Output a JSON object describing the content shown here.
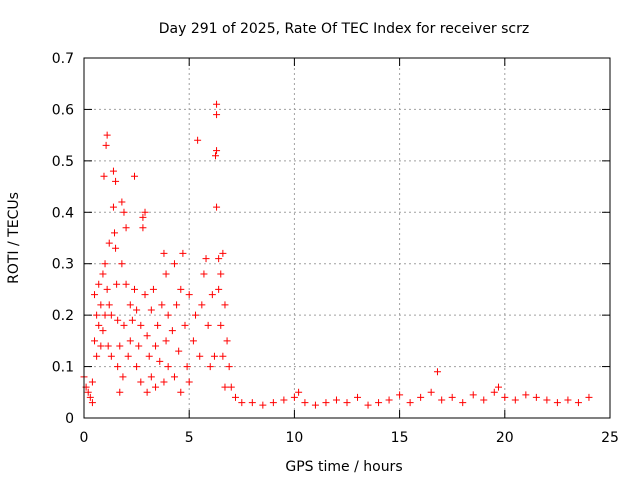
{
  "chart_data": {
    "type": "scatter",
    "title": "Day 291 of 2025, Rate Of TEC Index for receiver scrz",
    "xlabel": "GPS time / hours",
    "ylabel": "ROTI / TECUs",
    "xlim": [
      0,
      25
    ],
    "ylim": [
      0,
      0.7
    ],
    "xticks": [
      "0",
      "5",
      "10",
      "15",
      "20",
      "25"
    ],
    "yticks": [
      "0",
      "0.1",
      "0.2",
      "0.3",
      "0.4",
      "0.5",
      "0.6",
      "0.7"
    ],
    "grid": true,
    "marker": "plus",
    "color": "#ff0000",
    "series": [
      {
        "name": "ROTI",
        "points": [
          [
            0.0,
            0.08
          ],
          [
            0.1,
            0.06
          ],
          [
            0.2,
            0.05
          ],
          [
            0.3,
            0.04
          ],
          [
            0.4,
            0.03
          ],
          [
            0.4,
            0.07
          ],
          [
            0.5,
            0.15
          ],
          [
            0.5,
            0.24
          ],
          [
            0.6,
            0.2
          ],
          [
            0.6,
            0.12
          ],
          [
            0.7,
            0.26
          ],
          [
            0.7,
            0.18
          ],
          [
            0.8,
            0.22
          ],
          [
            0.8,
            0.14
          ],
          [
            0.9,
            0.28
          ],
          [
            0.9,
            0.17
          ],
          [
            0.95,
            0.47
          ],
          [
            1.0,
            0.3
          ],
          [
            1.0,
            0.2
          ],
          [
            1.05,
            0.53
          ],
          [
            1.1,
            0.55
          ],
          [
            1.1,
            0.25
          ],
          [
            1.15,
            0.14
          ],
          [
            1.2,
            0.34
          ],
          [
            1.2,
            0.22
          ],
          [
            1.3,
            0.12
          ],
          [
            1.3,
            0.2
          ],
          [
            1.4,
            0.48
          ],
          [
            1.4,
            0.41
          ],
          [
            1.45,
            0.36
          ],
          [
            1.5,
            0.46
          ],
          [
            1.5,
            0.33
          ],
          [
            1.55,
            0.26
          ],
          [
            1.6,
            0.19
          ],
          [
            1.6,
            0.1
          ],
          [
            1.7,
            0.05
          ],
          [
            1.7,
            0.14
          ],
          [
            1.8,
            0.42
          ],
          [
            1.8,
            0.3
          ],
          [
            1.85,
            0.08
          ],
          [
            1.9,
            0.4
          ],
          [
            1.9,
            0.18
          ],
          [
            2.0,
            0.37
          ],
          [
            2.0,
            0.26
          ],
          [
            2.1,
            0.12
          ],
          [
            2.2,
            0.15
          ],
          [
            2.2,
            0.22
          ],
          [
            2.3,
            0.19
          ],
          [
            2.4,
            0.47
          ],
          [
            2.4,
            0.25
          ],
          [
            2.5,
            0.21
          ],
          [
            2.5,
            0.1
          ],
          [
            2.6,
            0.14
          ],
          [
            2.7,
            0.07
          ],
          [
            2.7,
            0.18
          ],
          [
            2.8,
            0.39
          ],
          [
            2.8,
            0.37
          ],
          [
            2.9,
            0.4
          ],
          [
            2.9,
            0.24
          ],
          [
            3.0,
            0.16
          ],
          [
            3.0,
            0.05
          ],
          [
            3.1,
            0.12
          ],
          [
            3.2,
            0.21
          ],
          [
            3.2,
            0.08
          ],
          [
            3.3,
            0.25
          ],
          [
            3.4,
            0.14
          ],
          [
            3.4,
            0.06
          ],
          [
            3.5,
            0.18
          ],
          [
            3.6,
            0.11
          ],
          [
            3.7,
            0.22
          ],
          [
            3.8,
            0.32
          ],
          [
            3.8,
            0.07
          ],
          [
            3.9,
            0.28
          ],
          [
            3.9,
            0.15
          ],
          [
            4.0,
            0.2
          ],
          [
            4.0,
            0.1
          ],
          [
            4.2,
            0.17
          ],
          [
            4.3,
            0.3
          ],
          [
            4.3,
            0.08
          ],
          [
            4.4,
            0.22
          ],
          [
            4.5,
            0.13
          ],
          [
            4.6,
            0.25
          ],
          [
            4.6,
            0.05
          ],
          [
            4.7,
            0.32
          ],
          [
            4.8,
            0.18
          ],
          [
            4.9,
            0.1
          ],
          [
            5.0,
            0.24
          ],
          [
            5.0,
            0.07
          ],
          [
            5.2,
            0.15
          ],
          [
            5.3,
            0.2
          ],
          [
            5.4,
            0.54
          ],
          [
            5.5,
            0.12
          ],
          [
            5.6,
            0.22
          ],
          [
            5.7,
            0.28
          ],
          [
            5.8,
            0.31
          ],
          [
            5.9,
            0.18
          ],
          [
            6.0,
            0.1
          ],
          [
            6.1,
            0.24
          ],
          [
            6.2,
            0.12
          ],
          [
            6.25,
            0.51
          ],
          [
            6.3,
            0.61
          ],
          [
            6.3,
            0.59
          ],
          [
            6.3,
            0.52
          ],
          [
            6.3,
            0.41
          ],
          [
            6.4,
            0.31
          ],
          [
            6.4,
            0.25
          ],
          [
            6.5,
            0.28
          ],
          [
            6.5,
            0.18
          ],
          [
            6.6,
            0.32
          ],
          [
            6.6,
            0.12
          ],
          [
            6.7,
            0.22
          ],
          [
            6.7,
            0.06
          ],
          [
            6.8,
            0.15
          ],
          [
            6.9,
            0.1
          ],
          [
            7.0,
            0.06
          ],
          [
            7.2,
            0.04
          ],
          [
            7.5,
            0.03
          ],
          [
            8.0,
            0.03
          ],
          [
            8.5,
            0.025
          ],
          [
            9.0,
            0.03
          ],
          [
            9.5,
            0.035
          ],
          [
            10.0,
            0.04
          ],
          [
            10.2,
            0.05
          ],
          [
            10.5,
            0.03
          ],
          [
            11.0,
            0.025
          ],
          [
            11.5,
            0.03
          ],
          [
            12.0,
            0.035
          ],
          [
            12.5,
            0.03
          ],
          [
            13.0,
            0.04
          ],
          [
            13.5,
            0.025
          ],
          [
            14.0,
            0.03
          ],
          [
            14.5,
            0.035
          ],
          [
            15.0,
            0.045
          ],
          [
            15.5,
            0.03
          ],
          [
            16.0,
            0.04
          ],
          [
            16.5,
            0.05
          ],
          [
            16.8,
            0.09
          ],
          [
            17.0,
            0.035
          ],
          [
            17.5,
            0.04
          ],
          [
            18.0,
            0.03
          ],
          [
            18.5,
            0.045
          ],
          [
            19.0,
            0.035
          ],
          [
            19.5,
            0.05
          ],
          [
            19.7,
            0.06
          ],
          [
            20.0,
            0.04
          ],
          [
            20.5,
            0.035
          ],
          [
            21.0,
            0.045
          ],
          [
            21.5,
            0.04
          ],
          [
            22.0,
            0.035
          ],
          [
            22.5,
            0.03
          ],
          [
            23.0,
            0.035
          ],
          [
            23.5,
            0.03
          ],
          [
            24.0,
            0.04
          ]
        ]
      }
    ]
  }
}
